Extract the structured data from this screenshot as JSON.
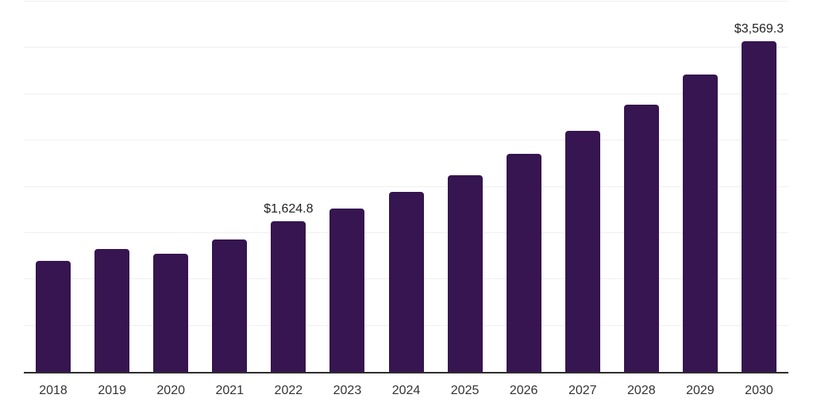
{
  "chart_data": {
    "type": "bar",
    "title": "",
    "xlabel": "",
    "ylabel": "",
    "categories": [
      "2018",
      "2019",
      "2020",
      "2021",
      "2022",
      "2023",
      "2024",
      "2025",
      "2026",
      "2027",
      "2028",
      "2029",
      "2030"
    ],
    "values": [
      1200,
      1328,
      1276,
      1430,
      1624.8,
      1764,
      1944,
      2124,
      2355,
      2604,
      2886,
      3212,
      3569.3
    ],
    "point_labels": [
      "",
      "",
      "",
      "",
      "$1,624.8",
      "",
      "",
      "",
      "",
      "",
      "",
      "",
      "$3,569.3"
    ],
    "ylim": [
      0,
      4000
    ],
    "grid_step": 500,
    "grid": "on",
    "legend": "none",
    "y_tick_labels_shown": false,
    "bar_color": "#361550",
    "grid_color": "#f0f0f0",
    "axis_color": "#2e2e2e",
    "x_label_color": "#333333",
    "value_label_color": "#222222"
  }
}
